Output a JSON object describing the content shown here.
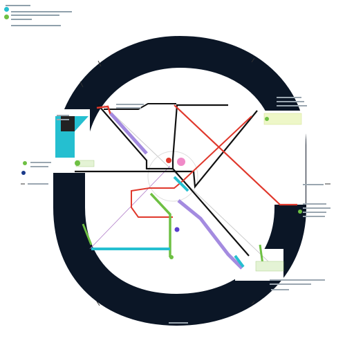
{
  "map": {
    "title": "",
    "legend": [
      {
        "label": "",
        "color": "#25bfd0",
        "icon": "station-dot-icon"
      },
      {
        "label": "",
        "color": "#6ec043",
        "icon": "station-dot-icon"
      }
    ]
  },
  "colors": {
    "ring": "#0b1626",
    "black_line": "#111111",
    "red_line": "#e0382c",
    "green_line": "#6ec043",
    "cyan_line": "#25bfd0",
    "purple_line": "#a48be0",
    "pink_line": "#f08ac8",
    "thin_line": "#c9c9c9",
    "label_box_yellow": "#eef7c8",
    "label_box_green": "#e4f3d5"
  },
  "compass": {
    "north_marks": 3,
    "south_marks": 2
  }
}
